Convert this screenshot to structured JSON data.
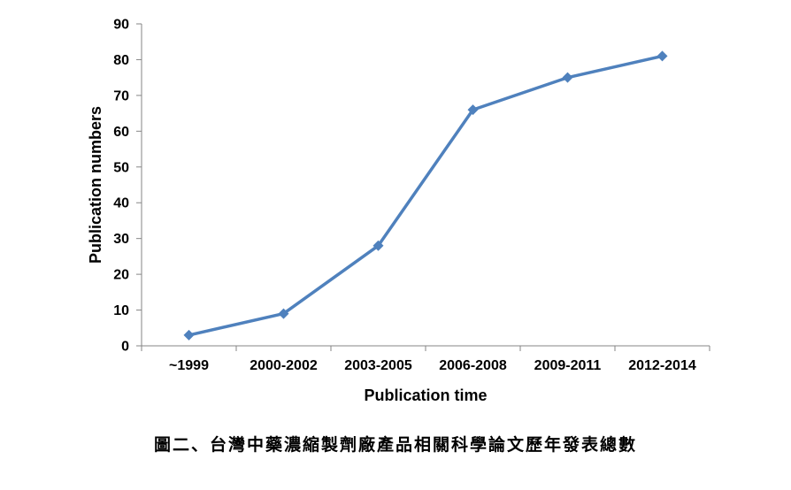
{
  "chart_data": {
    "type": "line",
    "categories": [
      "~1999",
      "2000-2002",
      "2003-2005",
      "2006-2008",
      "2009-2011",
      "2012-2014"
    ],
    "series": [
      {
        "values": [
          3,
          9,
          28,
          66,
          75,
          81
        ]
      }
    ],
    "xlabel": "Publication time",
    "ylabel": "Publication numbers",
    "ylim": [
      0,
      90
    ],
    "yticks": [
      0,
      10,
      20,
      30,
      40,
      50,
      60,
      70,
      80,
      90
    ],
    "grid": false,
    "legend": "none",
    "marker": "diamond",
    "line_color": "#4F81BD",
    "axis_color": "#868686"
  },
  "caption": "圖二、台灣中藥濃縮製劑廠產品相關科學論文歷年發表總數"
}
